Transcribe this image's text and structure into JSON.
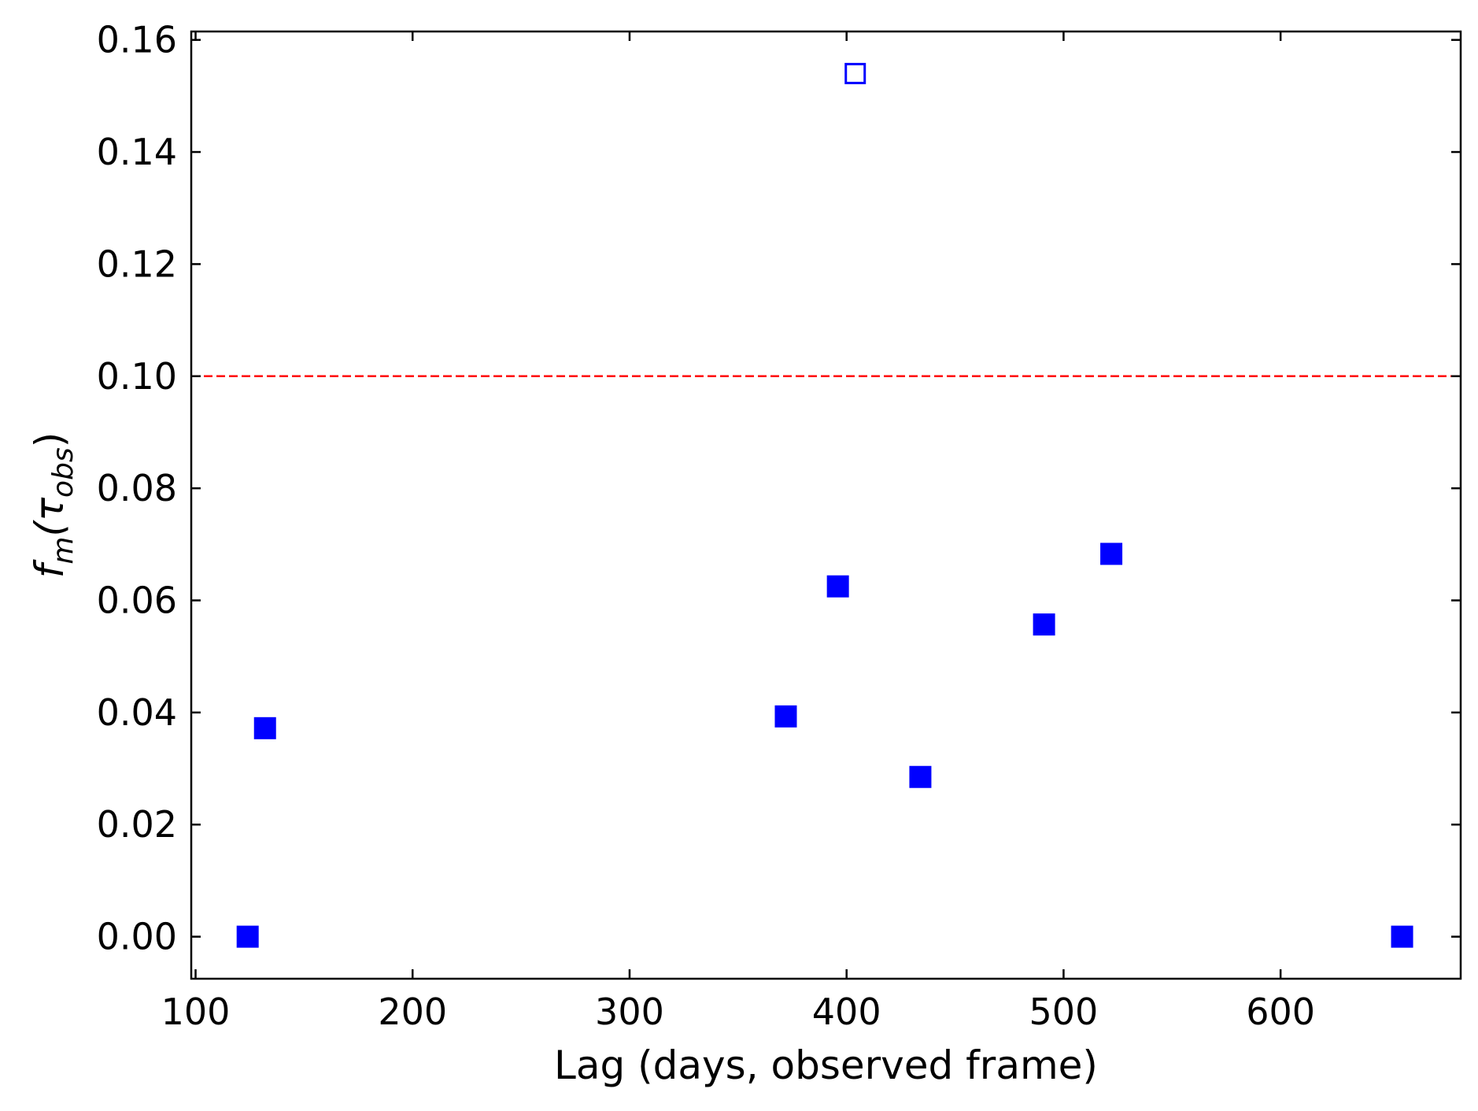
{
  "chart_data": {
    "type": "scatter",
    "title": "",
    "xlabel": "Lag (days, observed frame)",
    "ylabel": {
      "prefix": "f",
      "prefix_sub": "m",
      "open": "(τ",
      "inner_sub": "obs",
      "close": ")"
    },
    "xlim": [
      98,
      683
    ],
    "ylim": [
      -0.0075,
      0.1615
    ],
    "xticks": [
      100,
      200,
      300,
      400,
      500,
      600
    ],
    "xtick_labels": [
      "100",
      "200",
      "300",
      "400",
      "500",
      "600"
    ],
    "yticks": [
      0.0,
      0.02,
      0.04,
      0.06,
      0.08,
      0.1,
      0.12,
      0.14,
      0.16
    ],
    "ytick_labels": [
      "0.00",
      "0.02",
      "0.04",
      "0.06",
      "0.08",
      "0.10",
      "0.12",
      "0.14",
      "0.16"
    ],
    "grid": false,
    "reference_line": {
      "y": 0.1,
      "color": "#ff0000",
      "style": "dashed"
    },
    "series": [
      {
        "marker": "square-filled",
        "color": "#0000ff",
        "points": [
          {
            "x": 124,
            "y": 0.0
          },
          {
            "x": 132,
            "y": 0.0372
          },
          {
            "x": 372,
            "y": 0.0393
          },
          {
            "x": 396,
            "y": 0.0625
          },
          {
            "x": 434,
            "y": 0.0285
          },
          {
            "x": 491,
            "y": 0.0557
          },
          {
            "x": 522,
            "y": 0.0683
          },
          {
            "x": 656,
            "y": 0.0
          }
        ]
      },
      {
        "marker": "square-open",
        "color": "#0000ff",
        "points": [
          {
            "x": 404,
            "y": 0.154
          }
        ]
      }
    ]
  }
}
